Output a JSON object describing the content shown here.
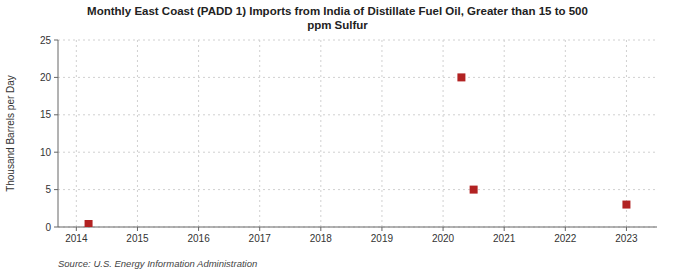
{
  "chart_data": {
    "type": "scatter",
    "title": "Monthly East Coast (PADD 1) Imports from India of Distillate Fuel Oil, Greater than 15 to 500\nppm Sulfur",
    "y_label": "Thousand Barrels per Day",
    "source": "Source: U.S. Energy Information Administration",
    "x": [
      2014.2,
      2020.3,
      2020.5,
      2023.0
    ],
    "values": [
      0.4,
      20.0,
      5.0,
      3.0
    ],
    "color": "#b22222",
    "marker": "square",
    "xlim": [
      2013.7,
      2023.5
    ],
    "ylim": [
      0,
      25
    ],
    "xticks": [
      2014,
      2015,
      2016,
      2017,
      2018,
      2019,
      2020,
      2021,
      2022,
      2023
    ],
    "yticks": [
      0,
      5,
      10,
      15,
      20,
      25
    ],
    "grid": true
  }
}
